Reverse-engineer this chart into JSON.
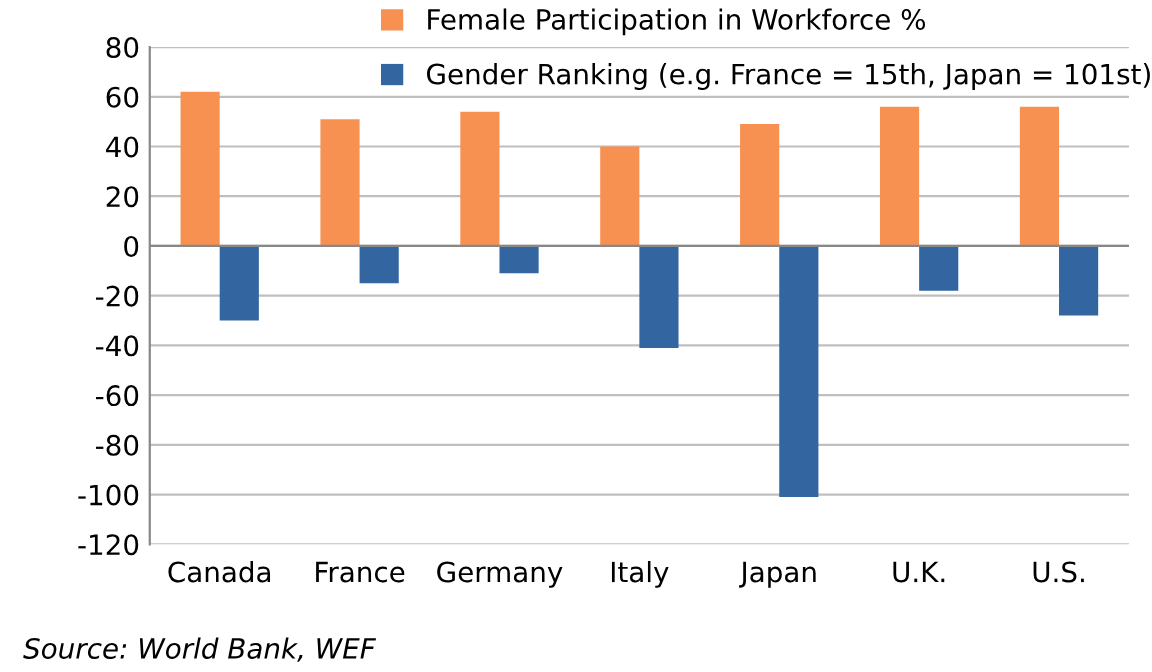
{
  "chart_data": {
    "type": "bar",
    "categories": [
      "Canada",
      "France",
      "Germany",
      "Italy",
      "Japan",
      "U.K.",
      "U.S."
    ],
    "series": [
      {
        "name": "Female Participation in Workforce %",
        "color": "#f79151",
        "values": [
          62,
          51,
          54,
          40,
          49,
          56,
          56
        ]
      },
      {
        "name": "Gender Ranking (e.g. France = 15th, Japan = 101st)",
        "color": "#3366a0",
        "values": [
          -30,
          -15,
          -11,
          -41,
          -101,
          -18,
          -28
        ]
      }
    ],
    "ylim": [
      -120,
      80
    ],
    "yticks": [
      -120,
      -100,
      -80,
      -60,
      -40,
      -20,
      0,
      20,
      40,
      60,
      80
    ],
    "grid": "y",
    "legend": "top",
    "annotations": [
      "Source: World Bank, WEF"
    ]
  }
}
